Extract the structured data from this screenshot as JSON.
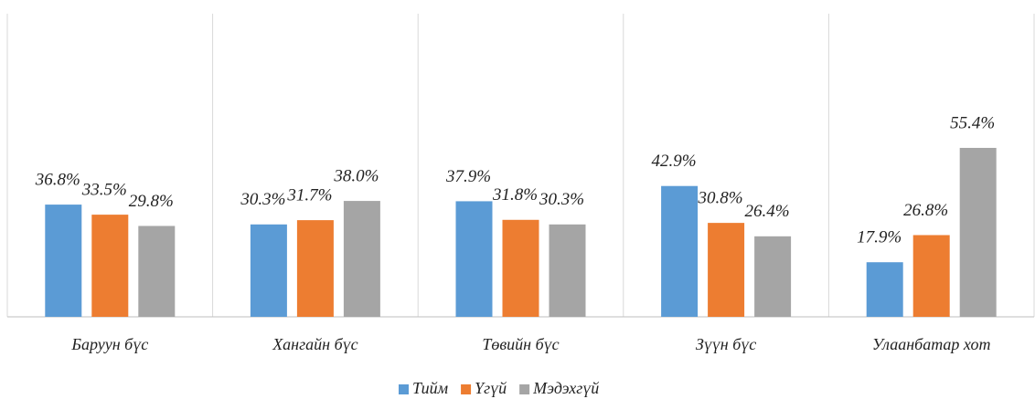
{
  "chart_data": {
    "type": "bar",
    "categories": [
      "Баруун бүс",
      "Хангайн бүс",
      "Төвийн бүс",
      "Зүүн бүс",
      "Улаанбатар хот"
    ],
    "series": [
      {
        "name": "Тийм",
        "color": "#5b9bd5",
        "values": [
          36.8,
          30.3,
          37.9,
          42.9,
          17.9
        ],
        "value_labels": [
          "36.8%",
          "30.3%",
          "37.9%",
          "42.9%",
          "17.9%"
        ]
      },
      {
        "name": "Үгүй",
        "color": "#ed7d31",
        "values": [
          33.5,
          31.7,
          31.8,
          30.8,
          26.8
        ],
        "value_labels": [
          "33.5%",
          "31.7%",
          "31.8%",
          "30.8%",
          "26.8%"
        ]
      },
      {
        "name": "Мэдэхгүй",
        "color": "#a5a5a5",
        "values": [
          29.8,
          38.0,
          30.3,
          26.4,
          55.4
        ],
        "value_labels": [
          "29.8%",
          "38.0%",
          "30.3%",
          "26.4%",
          "55.4%"
        ]
      }
    ],
    "ylim": [
      0,
      100
    ]
  }
}
